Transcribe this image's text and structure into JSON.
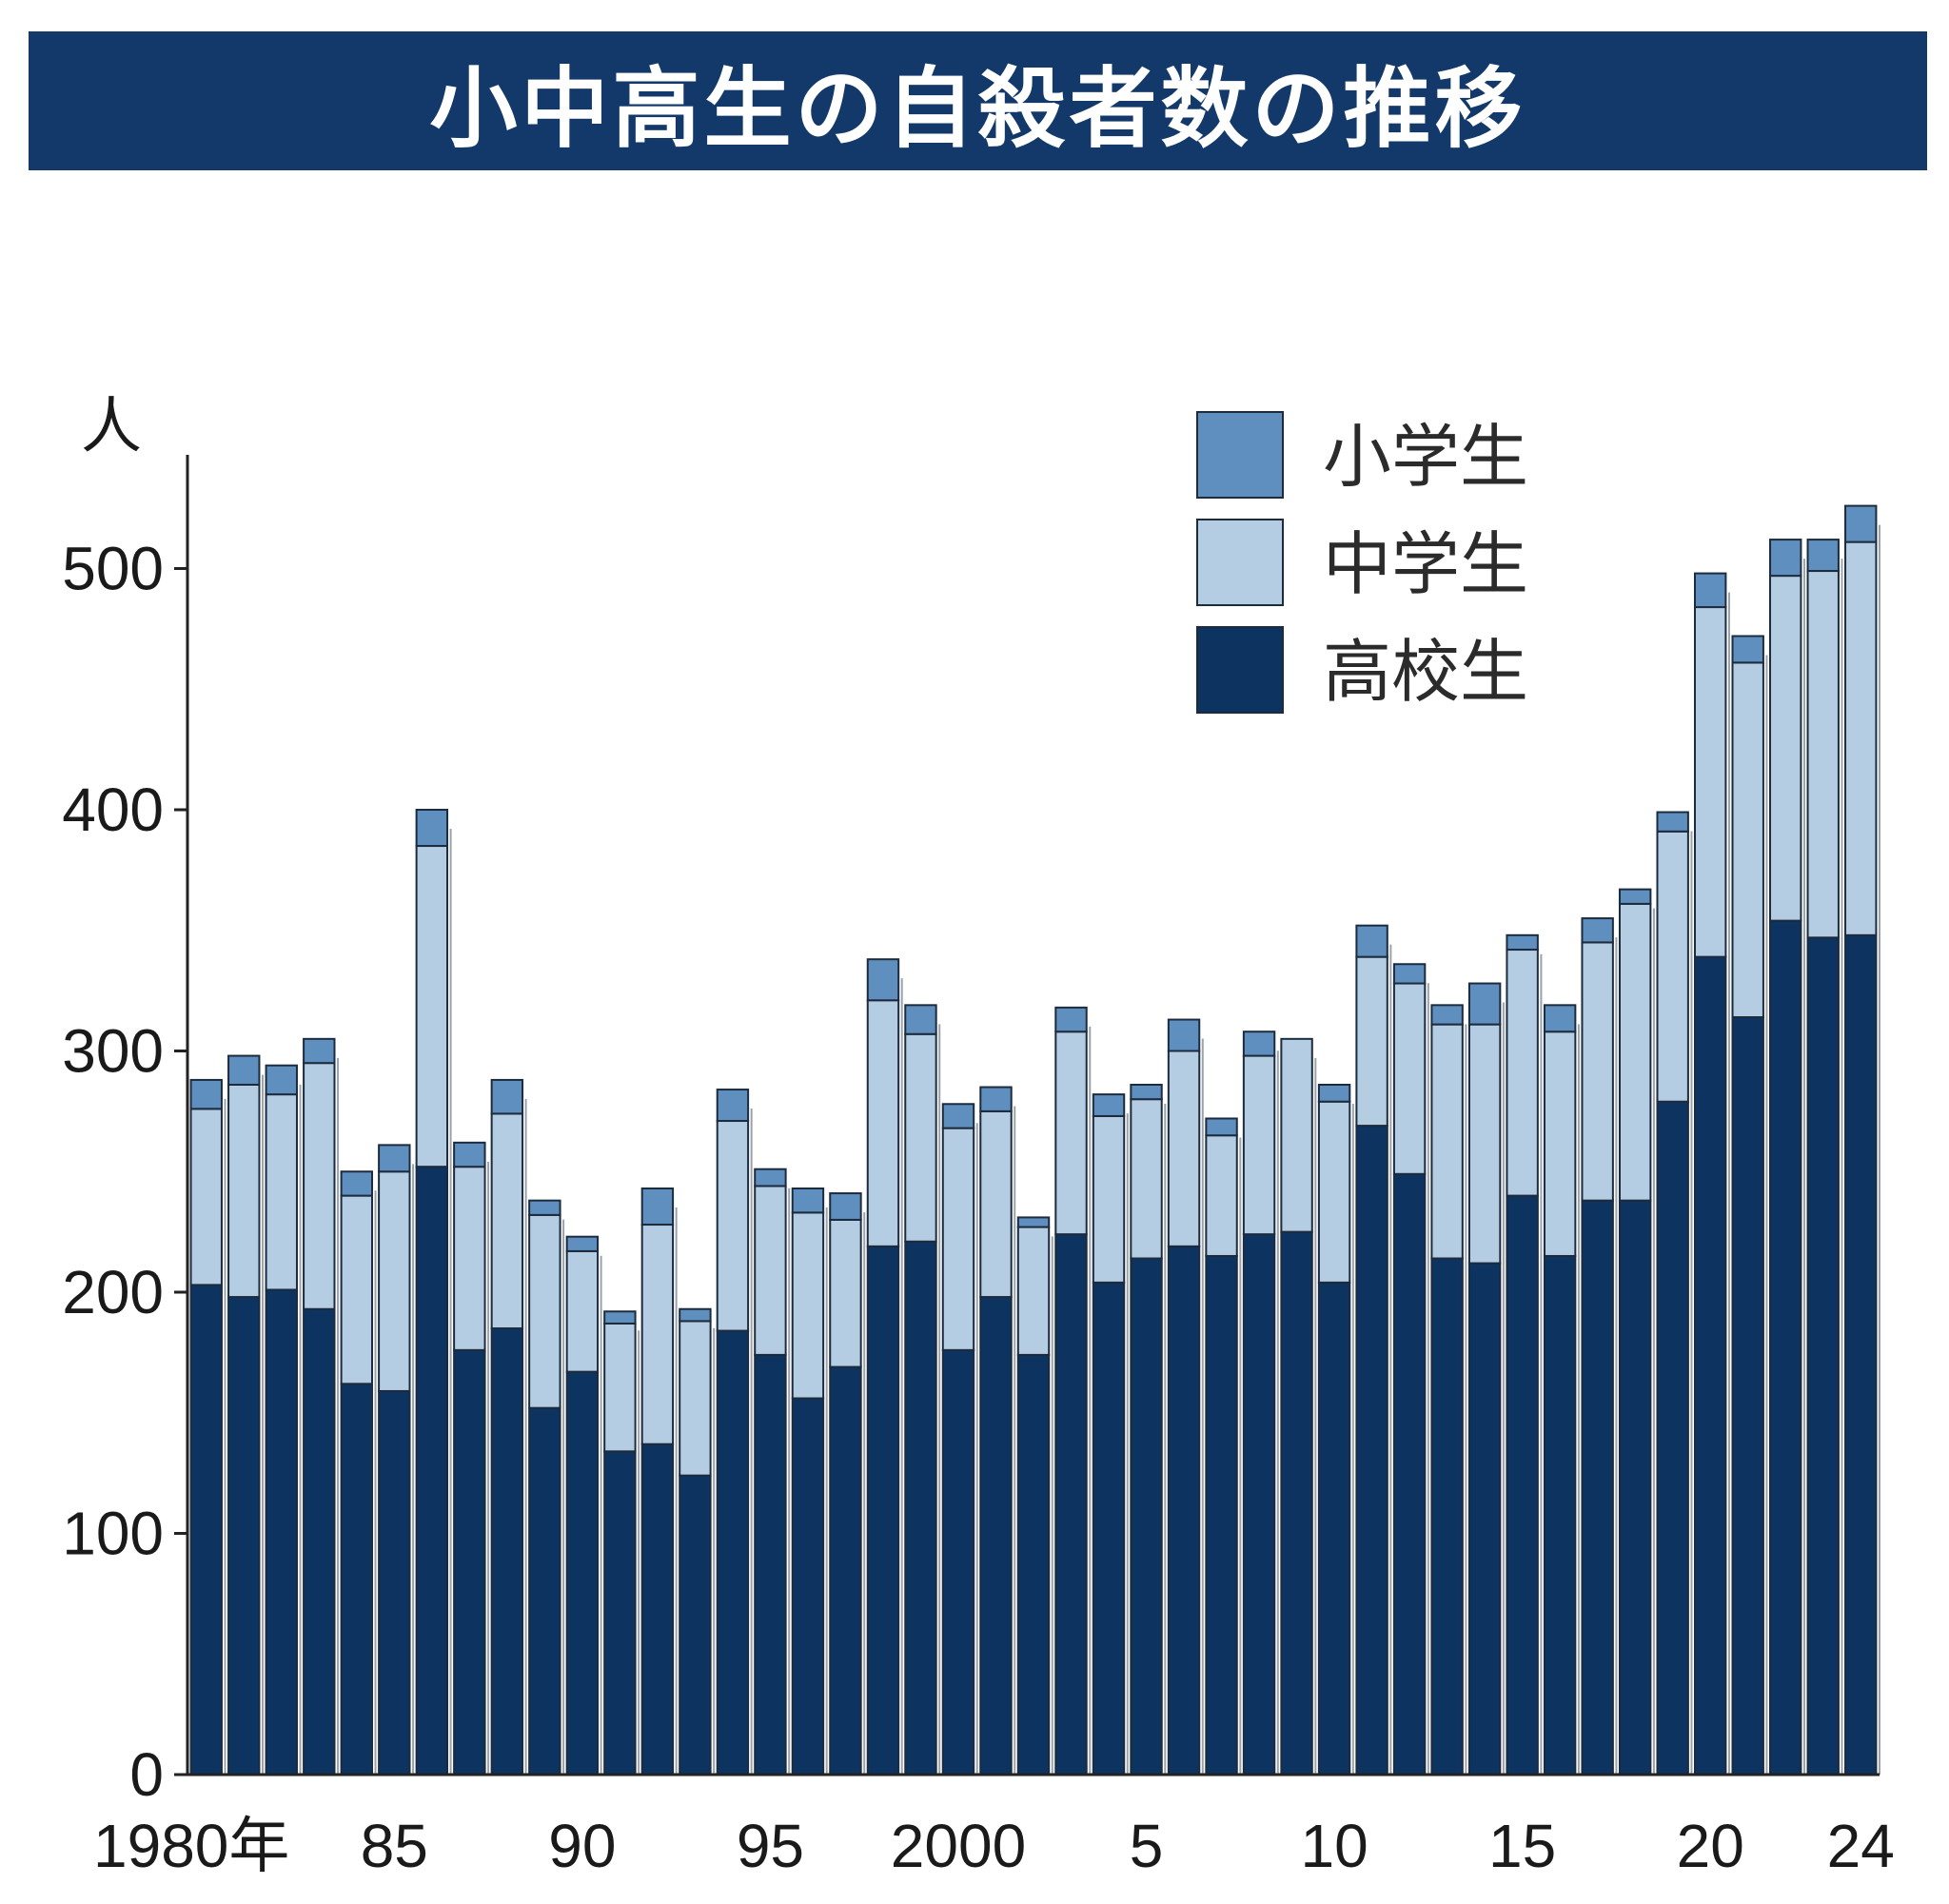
{
  "chart_data": {
    "type": "bar",
    "stacked": true,
    "title": "小中高生の自殺者数の推移",
    "unit_label": "人",
    "years": [
      1980,
      1981,
      1982,
      1983,
      1984,
      1985,
      1986,
      1987,
      1988,
      1989,
      1990,
      1991,
      1992,
      1993,
      1994,
      1995,
      1996,
      1997,
      1998,
      1999,
      2000,
      2001,
      2002,
      2003,
      2004,
      2005,
      2006,
      2007,
      2008,
      2009,
      2010,
      2011,
      2012,
      2013,
      2014,
      2015,
      2016,
      2017,
      2018,
      2019,
      2020,
      2021,
      2022,
      2023,
      2024
    ],
    "x_tick_labels": [
      {
        "year": 1980,
        "label": "1980年"
      },
      {
        "year": 1985,
        "label": "85"
      },
      {
        "year": 1990,
        "label": "90"
      },
      {
        "year": 1995,
        "label": "95"
      },
      {
        "year": 2000,
        "label": "2000"
      },
      {
        "year": 2005,
        "label": "5"
      },
      {
        "year": 2010,
        "label": "10"
      },
      {
        "year": 2015,
        "label": "15"
      },
      {
        "year": 2020,
        "label": "20"
      },
      {
        "year": 2024,
        "label": "24"
      }
    ],
    "y_ticks": [
      0,
      100,
      200,
      300,
      400,
      500
    ],
    "ylim": [
      0,
      560
    ],
    "legend_position": "top-right",
    "series": [
      {
        "name": "高校生",
        "color": "#0d3361",
        "values": [
          203,
          198,
          201,
          193,
          162,
          159,
          252,
          176,
          185,
          152,
          167,
          134,
          137,
          124,
          184,
          174,
          156,
          169,
          219,
          221,
          176,
          198,
          174,
          224,
          204,
          214,
          219,
          215,
          224,
          225,
          204,
          269,
          249,
          214,
          212,
          240,
          215,
          238,
          238,
          279,
          339,
          314,
          354,
          347,
          348
        ]
      },
      {
        "name": "中学生",
        "color": "#b5cde3",
        "values": [
          73,
          88,
          81,
          102,
          78,
          91,
          133,
          76,
          89,
          80,
          50,
          53,
          91,
          64,
          87,
          70,
          77,
          61,
          102,
          86,
          92,
          77,
          53,
          84,
          69,
          66,
          81,
          50,
          74,
          80,
          75,
          70,
          79,
          97,
          99,
          102,
          93,
          107,
          123,
          112,
          145,
          147,
          143,
          152,
          163
        ]
      },
      {
        "name": "小学生",
        "color": "#5f8fbf",
        "values": [
          12,
          12,
          12,
          10,
          10,
          11,
          15,
          10,
          14,
          6,
          6,
          5,
          15,
          5,
          13,
          7,
          10,
          11,
          17,
          12,
          10,
          10,
          4,
          10,
          9,
          6,
          13,
          7,
          10,
          0,
          7,
          13,
          8,
          8,
          17,
          6,
          11,
          10,
          6,
          8,
          14,
          11,
          15,
          13,
          15
        ]
      }
    ]
  }
}
